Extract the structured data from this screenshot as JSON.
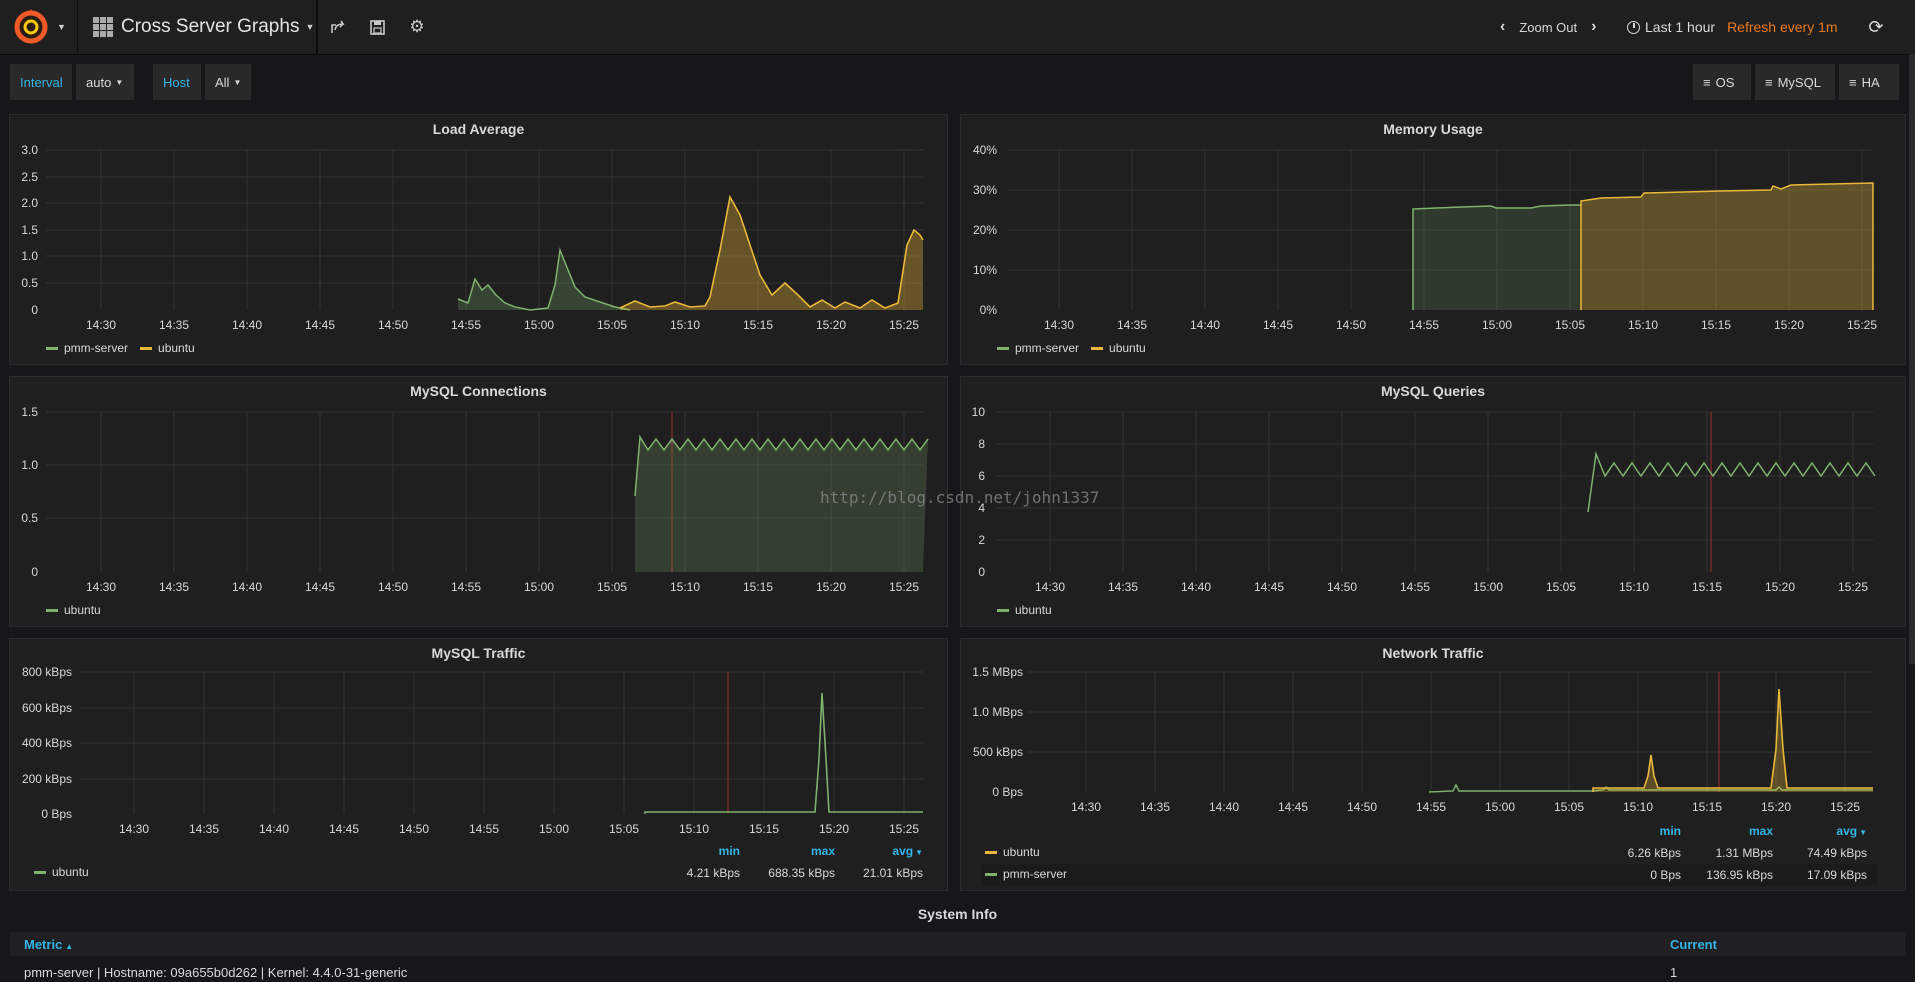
{
  "navbar": {
    "dashboard_title": "Cross Server Graphs",
    "zoom_out": "Zoom Out",
    "time_range": "Last 1 hour",
    "refresh": "Refresh every 1m"
  },
  "subnav": {
    "interval_label": "Interval",
    "interval_value": "auto",
    "host_label": "Host",
    "host_value": "All",
    "links": [
      "OS",
      "MySQL",
      "HA"
    ]
  },
  "x_ticks": [
    "14:30",
    "14:35",
    "14:40",
    "14:45",
    "14:50",
    "14:55",
    "15:00",
    "15:05",
    "15:10",
    "15:15",
    "15:20",
    "15:25"
  ],
  "colors": {
    "green": "#7eb26d",
    "yellow": "#eab839",
    "accent": "#33b5e5",
    "refresh": "#eb7b18",
    "red_marker": "#a52a2a"
  },
  "panels": {
    "load": {
      "title": "Load Average",
      "y_ticks": [
        "3.0",
        "2.5",
        "2.0",
        "1.5",
        "1.0",
        "0.5",
        "0"
      ],
      "legend": [
        "pmm-server",
        "ubuntu"
      ]
    },
    "memory": {
      "title": "Memory Usage",
      "y_ticks": [
        "40%",
        "30%",
        "20%",
        "10%",
        "0%"
      ],
      "legend": [
        "pmm-server",
        "ubuntu"
      ]
    },
    "conn": {
      "title": "MySQL Connections",
      "y_ticks": [
        "1.5",
        "1.0",
        "0.5",
        "0"
      ],
      "legend": [
        "ubuntu"
      ]
    },
    "queries": {
      "title": "MySQL Queries",
      "y_ticks": [
        "10",
        "8",
        "6",
        "4",
        "2",
        "0"
      ],
      "legend": [
        "ubuntu"
      ]
    },
    "traffic": {
      "title": "MySQL Traffic",
      "y_ticks": [
        "800 kBps",
        "600 kBps",
        "400 kBps",
        "200 kBps",
        "0 Bps"
      ],
      "legend_headers": [
        "min",
        "max",
        "avg"
      ],
      "rows": [
        {
          "name": "ubuntu",
          "min": "4.21 kBps",
          "max": "688.35 kBps",
          "avg": "21.01 kBps"
        }
      ]
    },
    "network": {
      "title": "Network Traffic",
      "y_ticks": [
        "1.5 MBps",
        "1.0 MBps",
        "500 kBps",
        "0 Bps"
      ],
      "legend_headers": [
        "min",
        "max",
        "avg"
      ],
      "rows": [
        {
          "name": "ubuntu",
          "min": "6.26 kBps",
          "max": "1.31 MBps",
          "avg": "74.49 kBps"
        },
        {
          "name": "pmm-server",
          "min": "0 Bps",
          "max": "136.95 kBps",
          "avg": "17.09 kBps"
        }
      ]
    }
  },
  "watermark": "http://blog.csdn.net/john1337",
  "system_info": {
    "title": "System Info",
    "col_metric": "Metric",
    "col_current": "Current",
    "row_text": "pmm-server | Hostname: 09a655b0d262 | Kernel: 4.4.0-31-generic",
    "row_value": "1"
  }
}
